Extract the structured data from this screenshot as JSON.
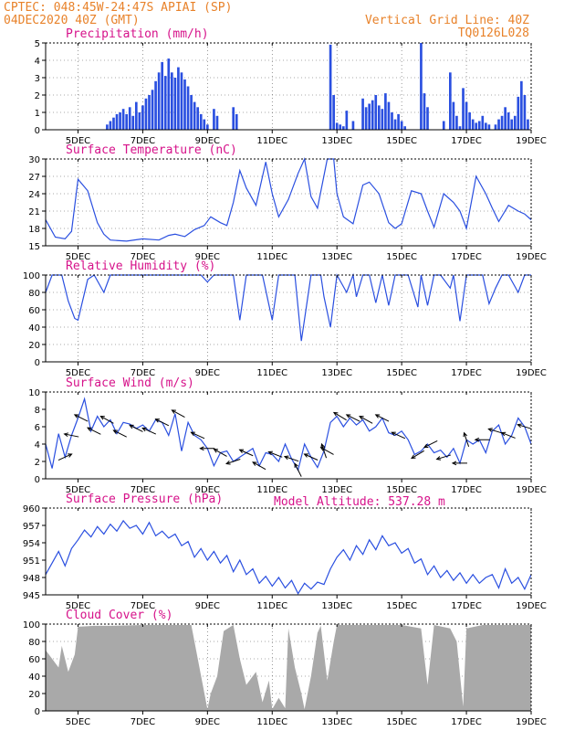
{
  "header": {
    "line1_left": "CPTEC:   048:45W-24:47S   APIAI (SP)",
    "line2_left": "04DEC2020 40Z (GMT)",
    "line1_right": "Vertical Grid Line: 40Z",
    "line2_right": "TQ0126L028",
    "model_altitude": "Model Altitude: 537.28 m"
  },
  "colors": {
    "header": "#e8822a",
    "panel_title": "#d6128a",
    "series": "#2a4fe0",
    "cloud": "#a9a9a9",
    "arrow": "#000000"
  },
  "x_axis": {
    "start_day": 4.0,
    "end_day": 19.0,
    "tick_days": [
      5,
      7,
      9,
      11,
      13,
      15,
      17,
      19
    ],
    "tick_labels": [
      "5DEC",
      "7DEC",
      "9DEC",
      "11DEC",
      "13DEC",
      "15DEC",
      "17DEC",
      "19DEC"
    ]
  },
  "chart_data": [
    {
      "id": "precip",
      "type": "bar",
      "title": "Precipitation (mm/h)",
      "ylim": [
        0,
        5
      ],
      "yticks": [
        0,
        1,
        2,
        3,
        4,
        5
      ],
      "grid": true,
      "x": [
        5.9,
        6.0,
        6.1,
        6.2,
        6.3,
        6.4,
        6.5,
        6.6,
        6.7,
        6.8,
        6.9,
        7.0,
        7.1,
        7.2,
        7.3,
        7.4,
        7.5,
        7.6,
        7.7,
        7.8,
        7.9,
        8.0,
        8.1,
        8.2,
        8.3,
        8.4,
        8.5,
        8.6,
        8.7,
        8.8,
        8.9,
        9.0,
        9.2,
        9.3,
        9.8,
        9.9,
        12.8,
        12.9,
        13.0,
        13.1,
        13.2,
        13.3,
        13.5,
        13.8,
        13.9,
        14.0,
        14.1,
        14.2,
        14.3,
        14.4,
        14.5,
        14.6,
        14.7,
        14.8,
        14.9,
        15.0,
        15.1,
        15.6,
        15.7,
        15.8,
        16.3,
        16.5,
        16.6,
        16.7,
        16.8,
        16.9,
        17.0,
        17.1,
        17.2,
        17.3,
        17.4,
        17.5,
        17.6,
        17.7,
        17.9,
        18.0,
        18.1,
        18.2,
        18.3,
        18.4,
        18.5,
        18.6,
        18.7,
        18.8,
        18.9
      ],
      "values": [
        0.3,
        0.5,
        0.7,
        0.9,
        1.0,
        1.2,
        0.9,
        1.3,
        0.8,
        1.6,
        1.0,
        1.4,
        1.8,
        2.0,
        2.3,
        2.8,
        3.3,
        3.9,
        3.1,
        4.1,
        3.3,
        3.0,
        3.6,
        3.3,
        2.9,
        2.5,
        2.0,
        1.6,
        1.3,
        0.9,
        0.6,
        0.3,
        1.2,
        0.8,
        1.3,
        0.9,
        4.9,
        2.0,
        0.4,
        0.3,
        0.2,
        1.1,
        0.5,
        1.8,
        1.3,
        1.5,
        1.7,
        2.0,
        1.4,
        1.2,
        2.1,
        1.6,
        1.0,
        0.6,
        0.9,
        0.5,
        0.2,
        5.0,
        2.1,
        1.3,
        0.5,
        3.3,
        1.6,
        0.8,
        0.2,
        2.4,
        1.6,
        1.0,
        0.6,
        0.4,
        0.5,
        0.8,
        0.4,
        0.3,
        0.3,
        0.6,
        0.8,
        1.3,
        1.0,
        0.6,
        0.8,
        1.9,
        2.8,
        2.0,
        0.6
      ]
    },
    {
      "id": "temp",
      "type": "line",
      "title": "Surface Temperature (nC)",
      "ylim": [
        15,
        30
      ],
      "yticks": [
        15,
        18,
        21,
        24,
        27,
        30
      ],
      "grid": true,
      "x": [
        4.0,
        4.3,
        4.6,
        4.8,
        5.0,
        5.3,
        5.6,
        5.8,
        6.0,
        6.5,
        7.0,
        7.5,
        7.8,
        8.0,
        8.3,
        8.6,
        8.9,
        9.1,
        9.4,
        9.6,
        9.8,
        10.0,
        10.2,
        10.5,
        10.8,
        11.0,
        11.2,
        11.5,
        11.8,
        12.0,
        12.2,
        12.4,
        12.7,
        12.9,
        13.0,
        13.2,
        13.5,
        13.8,
        14.0,
        14.3,
        14.6,
        14.8,
        15.0,
        15.3,
        15.6,
        15.8,
        16.0,
        16.3,
        16.6,
        16.8,
        17.0,
        17.3,
        17.6,
        17.8,
        18.0,
        18.3,
        18.6,
        18.8,
        19.0
      ],
      "values": [
        19.5,
        16.5,
        16.2,
        17.5,
        26.5,
        24.5,
        19.0,
        17.0,
        16.0,
        15.8,
        16.2,
        16.0,
        16.8,
        17.0,
        16.6,
        17.8,
        18.5,
        20.0,
        19.0,
        18.5,
        22.5,
        28.0,
        25.0,
        22.0,
        29.5,
        24.0,
        20.0,
        23.0,
        27.5,
        30.0,
        23.5,
        21.5,
        30.0,
        30.0,
        24.0,
        20.0,
        18.8,
        25.5,
        26.0,
        24.0,
        19.0,
        18.0,
        18.8,
        24.5,
        24.0,
        21.0,
        18.2,
        24.0,
        22.5,
        21.0,
        18.0,
        27.0,
        24.0,
        21.5,
        19.2,
        22.0,
        21.0,
        20.5,
        19.5
      ]
    },
    {
      "id": "rh",
      "type": "line",
      "title": "Relative Humidity (%)",
      "ylim": [
        0,
        100
      ],
      "yticks": [
        0,
        20,
        40,
        60,
        80,
        100
      ],
      "grid": true,
      "x": [
        4.0,
        4.2,
        4.5,
        4.7,
        4.9,
        5.0,
        5.3,
        5.5,
        5.8,
        6.0,
        6.5,
        7.0,
        7.5,
        8.0,
        8.5,
        8.8,
        9.0,
        9.2,
        9.5,
        9.8,
        10.0,
        10.2,
        10.5,
        10.7,
        11.0,
        11.2,
        11.5,
        11.7,
        11.9,
        12.2,
        12.5,
        12.6,
        12.8,
        13.0,
        13.3,
        13.5,
        13.6,
        13.8,
        14.0,
        14.2,
        14.4,
        14.6,
        14.8,
        15.0,
        15.2,
        15.5,
        15.6,
        15.8,
        16.0,
        16.2,
        16.5,
        16.6,
        16.8,
        17.0,
        17.2,
        17.5,
        17.7,
        17.9,
        18.1,
        18.3,
        18.6,
        18.8,
        19.0
      ],
      "values": [
        80,
        100,
        100,
        70,
        50,
        48,
        95,
        100,
        80,
        100,
        100,
        100,
        100,
        100,
        100,
        100,
        92,
        100,
        100,
        100,
        48,
        100,
        100,
        100,
        48,
        100,
        100,
        100,
        24,
        100,
        100,
        75,
        40,
        100,
        80,
        100,
        75,
        100,
        100,
        68,
        100,
        65,
        100,
        100,
        100,
        63,
        100,
        65,
        100,
        100,
        85,
        100,
        47,
        100,
        100,
        100,
        67,
        85,
        100,
        100,
        80,
        100,
        100
      ]
    },
    {
      "id": "wind",
      "type": "line",
      "title": "Surface Wind (m/s)",
      "ylim": [
        0,
        10
      ],
      "yticks": [
        0,
        2,
        4,
        6,
        8,
        10
      ],
      "grid": false,
      "x": [
        4.0,
        4.2,
        4.4,
        4.6,
        4.8,
        5.0,
        5.2,
        5.4,
        5.6,
        5.8,
        6.0,
        6.2,
        6.4,
        6.6,
        6.8,
        7.0,
        7.2,
        7.4,
        7.6,
        7.8,
        8.0,
        8.2,
        8.4,
        8.6,
        8.8,
        9.0,
        9.2,
        9.4,
        9.6,
        9.8,
        10.0,
        10.2,
        10.4,
        10.6,
        10.8,
        11.0,
        11.2,
        11.4,
        11.6,
        11.8,
        12.0,
        12.2,
        12.4,
        12.6,
        12.8,
        13.0,
        13.2,
        13.4,
        13.6,
        13.8,
        14.0,
        14.2,
        14.4,
        14.6,
        14.8,
        15.0,
        15.2,
        15.4,
        15.6,
        15.8,
        16.0,
        16.2,
        16.4,
        16.6,
        16.8,
        17.0,
        17.2,
        17.4,
        17.6,
        17.8,
        18.0,
        18.2,
        18.4,
        18.6,
        18.8,
        19.0
      ],
      "values": [
        4,
        1.2,
        5.2,
        2.5,
        5.0,
        7.0,
        9.2,
        5.5,
        7.2,
        6.0,
        6.8,
        5.2,
        6.5,
        6.3,
        5.8,
        6.2,
        5.5,
        6.8,
        6.5,
        5.0,
        7.5,
        3.2,
        6.5,
        5.0,
        4.5,
        3.5,
        1.5,
        3.0,
        3.2,
        2.0,
        2.5,
        3.0,
        3.5,
        1.5,
        3.0,
        2.8,
        2.0,
        4.0,
        2.3,
        1.0,
        4.0,
        2.5,
        1.3,
        3.2,
        6.5,
        7.2,
        6.0,
        7.0,
        6.2,
        6.8,
        5.5,
        6.0,
        7.0,
        5.3,
        5.0,
        5.5,
        4.5,
        2.8,
        3.2,
        4.0,
        3.0,
        3.3,
        2.5,
        3.5,
        1.8,
        4.5,
        4.0,
        4.5,
        3.0,
        5.5,
        6.2,
        4.0,
        5.0,
        7.0,
        6.0,
        4.0
      ],
      "arrows": [
        {
          "day": 4.6,
          "u": 1.0,
          "v": 0.45
        },
        {
          "day": 4.8,
          "u": -1.0,
          "v": 0.2
        },
        {
          "day": 5.1,
          "u": -1.0,
          "v": 0.5
        },
        {
          "day": 5.5,
          "u": -1.0,
          "v": 0.5
        },
        {
          "day": 5.9,
          "u": -1.0,
          "v": 0.55
        },
        {
          "day": 6.3,
          "u": -1.0,
          "v": 0.5
        },
        {
          "day": 6.8,
          "u": -1.0,
          "v": 0.5
        },
        {
          "day": 7.2,
          "u": -1.0,
          "v": 0.45
        },
        {
          "day": 7.6,
          "u": -1.0,
          "v": 0.5
        },
        {
          "day": 8.1,
          "u": -1.0,
          "v": 0.55
        },
        {
          "day": 8.7,
          "u": -1.0,
          "v": 0.45
        },
        {
          "day": 9.0,
          "u": -1.0,
          "v": 0.0
        },
        {
          "day": 9.4,
          "u": -0.9,
          "v": 0.5
        },
        {
          "day": 9.8,
          "u": -0.9,
          "v": -0.3
        },
        {
          "day": 10.2,
          "u": -0.9,
          "v": 0.4
        },
        {
          "day": 10.6,
          "u": -0.9,
          "v": 0.5
        },
        {
          "day": 11.1,
          "u": -0.9,
          "v": 0.35
        },
        {
          "day": 11.6,
          "u": -0.9,
          "v": 0.3
        },
        {
          "day": 11.8,
          "u": -0.4,
          "v": 0.8
        },
        {
          "day": 12.2,
          "u": -0.9,
          "v": 0.4
        },
        {
          "day": 12.6,
          "u": -0.3,
          "v": 0.9
        },
        {
          "day": 12.7,
          "u": -0.9,
          "v": 0.5
        },
        {
          "day": 13.1,
          "u": -1.0,
          "v": 0.6
        },
        {
          "day": 13.5,
          "u": -1.0,
          "v": 0.5
        },
        {
          "day": 13.9,
          "u": -1.0,
          "v": 0.55
        },
        {
          "day": 14.4,
          "u": -1.0,
          "v": 0.5
        },
        {
          "day": 14.9,
          "u": -1.0,
          "v": 0.45
        },
        {
          "day": 15.5,
          "u": -1.0,
          "v": -0.6
        },
        {
          "day": 15.9,
          "u": -1.0,
          "v": -0.5
        },
        {
          "day": 16.3,
          "u": -1.0,
          "v": -0.3
        },
        {
          "day": 16.8,
          "u": -1.0,
          "v": 0.0
        },
        {
          "day": 17.0,
          "u": -0.3,
          "v": 0.9
        },
        {
          "day": 17.5,
          "u": -1.0,
          "v": 0.0
        },
        {
          "day": 17.9,
          "u": -1.0,
          "v": 0.3
        },
        {
          "day": 18.3,
          "u": -1.0,
          "v": 0.4
        },
        {
          "day": 18.8,
          "u": -1.0,
          "v": 0.3
        }
      ]
    },
    {
      "id": "pressure",
      "type": "line",
      "title": "Surface Pressure (hPa)",
      "ylim": [
        945,
        960
      ],
      "yticks": [
        945,
        948,
        951,
        954,
        957,
        960
      ],
      "ytick_labels": [
        "945",
        "948",
        "951",
        "954",
        "957",
        "960"
      ],
      "grid": false,
      "x": [
        4.0,
        4.2,
        4.4,
        4.6,
        4.8,
        5.0,
        5.2,
        5.4,
        5.6,
        5.8,
        6.0,
        6.2,
        6.4,
        6.6,
        6.8,
        7.0,
        7.2,
        7.4,
        7.6,
        7.8,
        8.0,
        8.2,
        8.4,
        8.6,
        8.8,
        9.0,
        9.2,
        9.4,
        9.6,
        9.8,
        10.0,
        10.2,
        10.4,
        10.6,
        10.8,
        11.0,
        11.2,
        11.4,
        11.6,
        11.8,
        12.0,
        12.2,
        12.4,
        12.6,
        12.8,
        13.0,
        13.2,
        13.4,
        13.6,
        13.8,
        14.0,
        14.2,
        14.4,
        14.6,
        14.8,
        15.0,
        15.2,
        15.4,
        15.6,
        15.8,
        16.0,
        16.2,
        16.4,
        16.6,
        16.8,
        17.0,
        17.2,
        17.4,
        17.6,
        17.8,
        18.0,
        18.2,
        18.4,
        18.6,
        18.8,
        19.0
      ],
      "values": [
        948.5,
        950.5,
        952.5,
        950.0,
        953.0,
        954.5,
        956.2,
        955.0,
        956.8,
        955.5,
        957.2,
        956.0,
        957.8,
        956.5,
        957.0,
        955.5,
        957.5,
        955.2,
        956.0,
        954.8,
        955.5,
        953.5,
        954.2,
        951.5,
        953.0,
        951.0,
        952.5,
        950.5,
        951.8,
        949.0,
        951.0,
        948.5,
        949.5,
        947.0,
        948.2,
        946.5,
        948.0,
        946.2,
        947.5,
        945.2,
        947.0,
        946.0,
        947.2,
        946.8,
        949.5,
        951.5,
        952.8,
        951.0,
        953.5,
        952.0,
        954.5,
        952.8,
        955.2,
        953.5,
        954.0,
        952.2,
        953.0,
        950.5,
        951.2,
        948.5,
        950.0,
        948.0,
        949.2,
        947.5,
        948.8,
        947.0,
        948.5,
        947.0,
        948.0,
        948.5,
        946.2,
        949.5,
        947.0,
        948.0,
        946.0,
        948.5
      ]
    },
    {
      "id": "cloud",
      "type": "area",
      "title": "Cloud Cover (%)",
      "ylim": [
        0,
        100
      ],
      "yticks": [
        0,
        20,
        40,
        60,
        80,
        100
      ],
      "grid": true,
      "x": [
        4.0,
        4.2,
        4.4,
        4.5,
        4.7,
        4.9,
        5.0,
        5.5,
        6.0,
        7.0,
        8.0,
        8.5,
        9.0,
        9.1,
        9.3,
        9.5,
        9.8,
        10.0,
        10.2,
        10.5,
        10.7,
        10.9,
        11.0,
        11.2,
        11.4,
        11.5,
        11.7,
        11.9,
        12.0,
        12.2,
        12.4,
        12.5,
        12.7,
        12.9,
        13.0,
        14.0,
        15.0,
        15.6,
        15.8,
        16.0,
        16.5,
        16.7,
        16.9,
        17.0,
        17.5,
        18.0,
        18.5,
        19.0
      ],
      "values": [
        70,
        60,
        50,
        75,
        45,
        65,
        97,
        98,
        98,
        99,
        99,
        99,
        2,
        20,
        40,
        92,
        99,
        60,
        30,
        45,
        10,
        35,
        2,
        15,
        3,
        95,
        50,
        20,
        2,
        40,
        90,
        98,
        35,
        80,
        99,
        99,
        99,
        95,
        30,
        99,
        95,
        80,
        5,
        95,
        99,
        99,
        99,
        99
      ]
    }
  ]
}
